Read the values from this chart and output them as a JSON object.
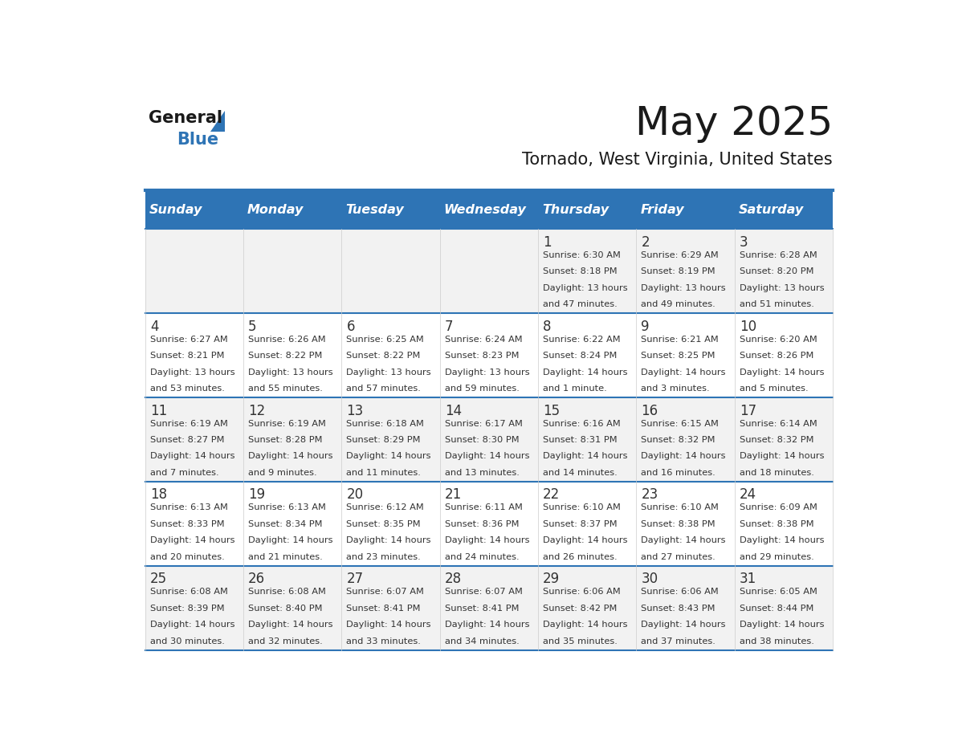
{
  "title": "May 2025",
  "subtitle": "Tornado, West Virginia, United States",
  "days_of_week": [
    "Sunday",
    "Monday",
    "Tuesday",
    "Wednesday",
    "Thursday",
    "Friday",
    "Saturday"
  ],
  "header_bg": "#2E74B5",
  "header_text_color": "#FFFFFF",
  "row_bg_even": "#F2F2F2",
  "row_bg_odd": "#FFFFFF",
  "separator_color": "#2E74B5",
  "text_color": "#333333",
  "day_num_color": "#333333",
  "logo_general_color": "#1a1a1a",
  "logo_blue_color": "#2E74B5",
  "calendar": [
    [
      {
        "day": "",
        "sunrise": "",
        "sunset": "",
        "daylight": ""
      },
      {
        "day": "",
        "sunrise": "",
        "sunset": "",
        "daylight": ""
      },
      {
        "day": "",
        "sunrise": "",
        "sunset": "",
        "daylight": ""
      },
      {
        "day": "",
        "sunrise": "",
        "sunset": "",
        "daylight": ""
      },
      {
        "day": "1",
        "sunrise": "Sunrise: 6:30 AM",
        "sunset": "Sunset: 8:18 PM",
        "daylight": "Daylight: 13 hours\nand 47 minutes."
      },
      {
        "day": "2",
        "sunrise": "Sunrise: 6:29 AM",
        "sunset": "Sunset: 8:19 PM",
        "daylight": "Daylight: 13 hours\nand 49 minutes."
      },
      {
        "day": "3",
        "sunrise": "Sunrise: 6:28 AM",
        "sunset": "Sunset: 8:20 PM",
        "daylight": "Daylight: 13 hours\nand 51 minutes."
      }
    ],
    [
      {
        "day": "4",
        "sunrise": "Sunrise: 6:27 AM",
        "sunset": "Sunset: 8:21 PM",
        "daylight": "Daylight: 13 hours\nand 53 minutes."
      },
      {
        "day": "5",
        "sunrise": "Sunrise: 6:26 AM",
        "sunset": "Sunset: 8:22 PM",
        "daylight": "Daylight: 13 hours\nand 55 minutes."
      },
      {
        "day": "6",
        "sunrise": "Sunrise: 6:25 AM",
        "sunset": "Sunset: 8:22 PM",
        "daylight": "Daylight: 13 hours\nand 57 minutes."
      },
      {
        "day": "7",
        "sunrise": "Sunrise: 6:24 AM",
        "sunset": "Sunset: 8:23 PM",
        "daylight": "Daylight: 13 hours\nand 59 minutes."
      },
      {
        "day": "8",
        "sunrise": "Sunrise: 6:22 AM",
        "sunset": "Sunset: 8:24 PM",
        "daylight": "Daylight: 14 hours\nand 1 minute."
      },
      {
        "day": "9",
        "sunrise": "Sunrise: 6:21 AM",
        "sunset": "Sunset: 8:25 PM",
        "daylight": "Daylight: 14 hours\nand 3 minutes."
      },
      {
        "day": "10",
        "sunrise": "Sunrise: 6:20 AM",
        "sunset": "Sunset: 8:26 PM",
        "daylight": "Daylight: 14 hours\nand 5 minutes."
      }
    ],
    [
      {
        "day": "11",
        "sunrise": "Sunrise: 6:19 AM",
        "sunset": "Sunset: 8:27 PM",
        "daylight": "Daylight: 14 hours\nand 7 minutes."
      },
      {
        "day": "12",
        "sunrise": "Sunrise: 6:19 AM",
        "sunset": "Sunset: 8:28 PM",
        "daylight": "Daylight: 14 hours\nand 9 minutes."
      },
      {
        "day": "13",
        "sunrise": "Sunrise: 6:18 AM",
        "sunset": "Sunset: 8:29 PM",
        "daylight": "Daylight: 14 hours\nand 11 minutes."
      },
      {
        "day": "14",
        "sunrise": "Sunrise: 6:17 AM",
        "sunset": "Sunset: 8:30 PM",
        "daylight": "Daylight: 14 hours\nand 13 minutes."
      },
      {
        "day": "15",
        "sunrise": "Sunrise: 6:16 AM",
        "sunset": "Sunset: 8:31 PM",
        "daylight": "Daylight: 14 hours\nand 14 minutes."
      },
      {
        "day": "16",
        "sunrise": "Sunrise: 6:15 AM",
        "sunset": "Sunset: 8:32 PM",
        "daylight": "Daylight: 14 hours\nand 16 minutes."
      },
      {
        "day": "17",
        "sunrise": "Sunrise: 6:14 AM",
        "sunset": "Sunset: 8:32 PM",
        "daylight": "Daylight: 14 hours\nand 18 minutes."
      }
    ],
    [
      {
        "day": "18",
        "sunrise": "Sunrise: 6:13 AM",
        "sunset": "Sunset: 8:33 PM",
        "daylight": "Daylight: 14 hours\nand 20 minutes."
      },
      {
        "day": "19",
        "sunrise": "Sunrise: 6:13 AM",
        "sunset": "Sunset: 8:34 PM",
        "daylight": "Daylight: 14 hours\nand 21 minutes."
      },
      {
        "day": "20",
        "sunrise": "Sunrise: 6:12 AM",
        "sunset": "Sunset: 8:35 PM",
        "daylight": "Daylight: 14 hours\nand 23 minutes."
      },
      {
        "day": "21",
        "sunrise": "Sunrise: 6:11 AM",
        "sunset": "Sunset: 8:36 PM",
        "daylight": "Daylight: 14 hours\nand 24 minutes."
      },
      {
        "day": "22",
        "sunrise": "Sunrise: 6:10 AM",
        "sunset": "Sunset: 8:37 PM",
        "daylight": "Daylight: 14 hours\nand 26 minutes."
      },
      {
        "day": "23",
        "sunrise": "Sunrise: 6:10 AM",
        "sunset": "Sunset: 8:38 PM",
        "daylight": "Daylight: 14 hours\nand 27 minutes."
      },
      {
        "day": "24",
        "sunrise": "Sunrise: 6:09 AM",
        "sunset": "Sunset: 8:38 PM",
        "daylight": "Daylight: 14 hours\nand 29 minutes."
      }
    ],
    [
      {
        "day": "25",
        "sunrise": "Sunrise: 6:08 AM",
        "sunset": "Sunset: 8:39 PM",
        "daylight": "Daylight: 14 hours\nand 30 minutes."
      },
      {
        "day": "26",
        "sunrise": "Sunrise: 6:08 AM",
        "sunset": "Sunset: 8:40 PM",
        "daylight": "Daylight: 14 hours\nand 32 minutes."
      },
      {
        "day": "27",
        "sunrise": "Sunrise: 6:07 AM",
        "sunset": "Sunset: 8:41 PM",
        "daylight": "Daylight: 14 hours\nand 33 minutes."
      },
      {
        "day": "28",
        "sunrise": "Sunrise: 6:07 AM",
        "sunset": "Sunset: 8:41 PM",
        "daylight": "Daylight: 14 hours\nand 34 minutes."
      },
      {
        "day": "29",
        "sunrise": "Sunrise: 6:06 AM",
        "sunset": "Sunset: 8:42 PM",
        "daylight": "Daylight: 14 hours\nand 35 minutes."
      },
      {
        "day": "30",
        "sunrise": "Sunrise: 6:06 AM",
        "sunset": "Sunset: 8:43 PM",
        "daylight": "Daylight: 14 hours\nand 37 minutes."
      },
      {
        "day": "31",
        "sunrise": "Sunrise: 6:05 AM",
        "sunset": "Sunset: 8:44 PM",
        "daylight": "Daylight: 14 hours\nand 38 minutes."
      }
    ]
  ]
}
